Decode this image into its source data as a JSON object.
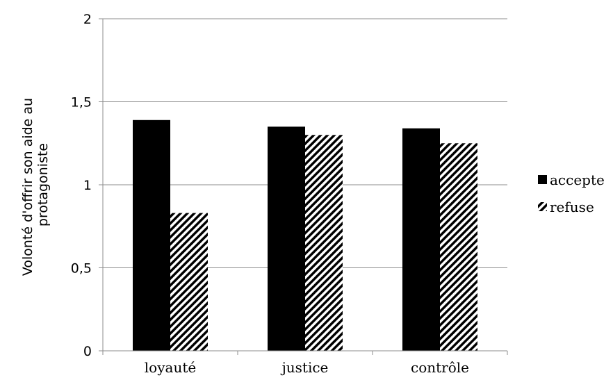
{
  "chart_data": {
    "type": "bar",
    "categories": [
      "loyauté",
      "justice",
      "contrôle"
    ],
    "series": [
      {
        "name": "accepte",
        "values": [
          1.39,
          1.35,
          1.34
        ],
        "pattern": "solid",
        "color": "#000000"
      },
      {
        "name": "refuse",
        "values": [
          0.83,
          1.3,
          1.25
        ],
        "pattern": "diagonal-stripes",
        "color": "#000000"
      }
    ],
    "title": "",
    "xlabel": "",
    "ylabel_lines": [
      "Volonté d'offrir son aide au",
      "protagoniste"
    ],
    "ylim": [
      0,
      2
    ],
    "yticks": [
      0,
      0.5,
      1,
      1.5,
      2
    ],
    "ytick_labels": [
      "0",
      "0,5",
      "1",
      "1,5",
      "2"
    ],
    "grid": true,
    "legend_position": "right"
  }
}
